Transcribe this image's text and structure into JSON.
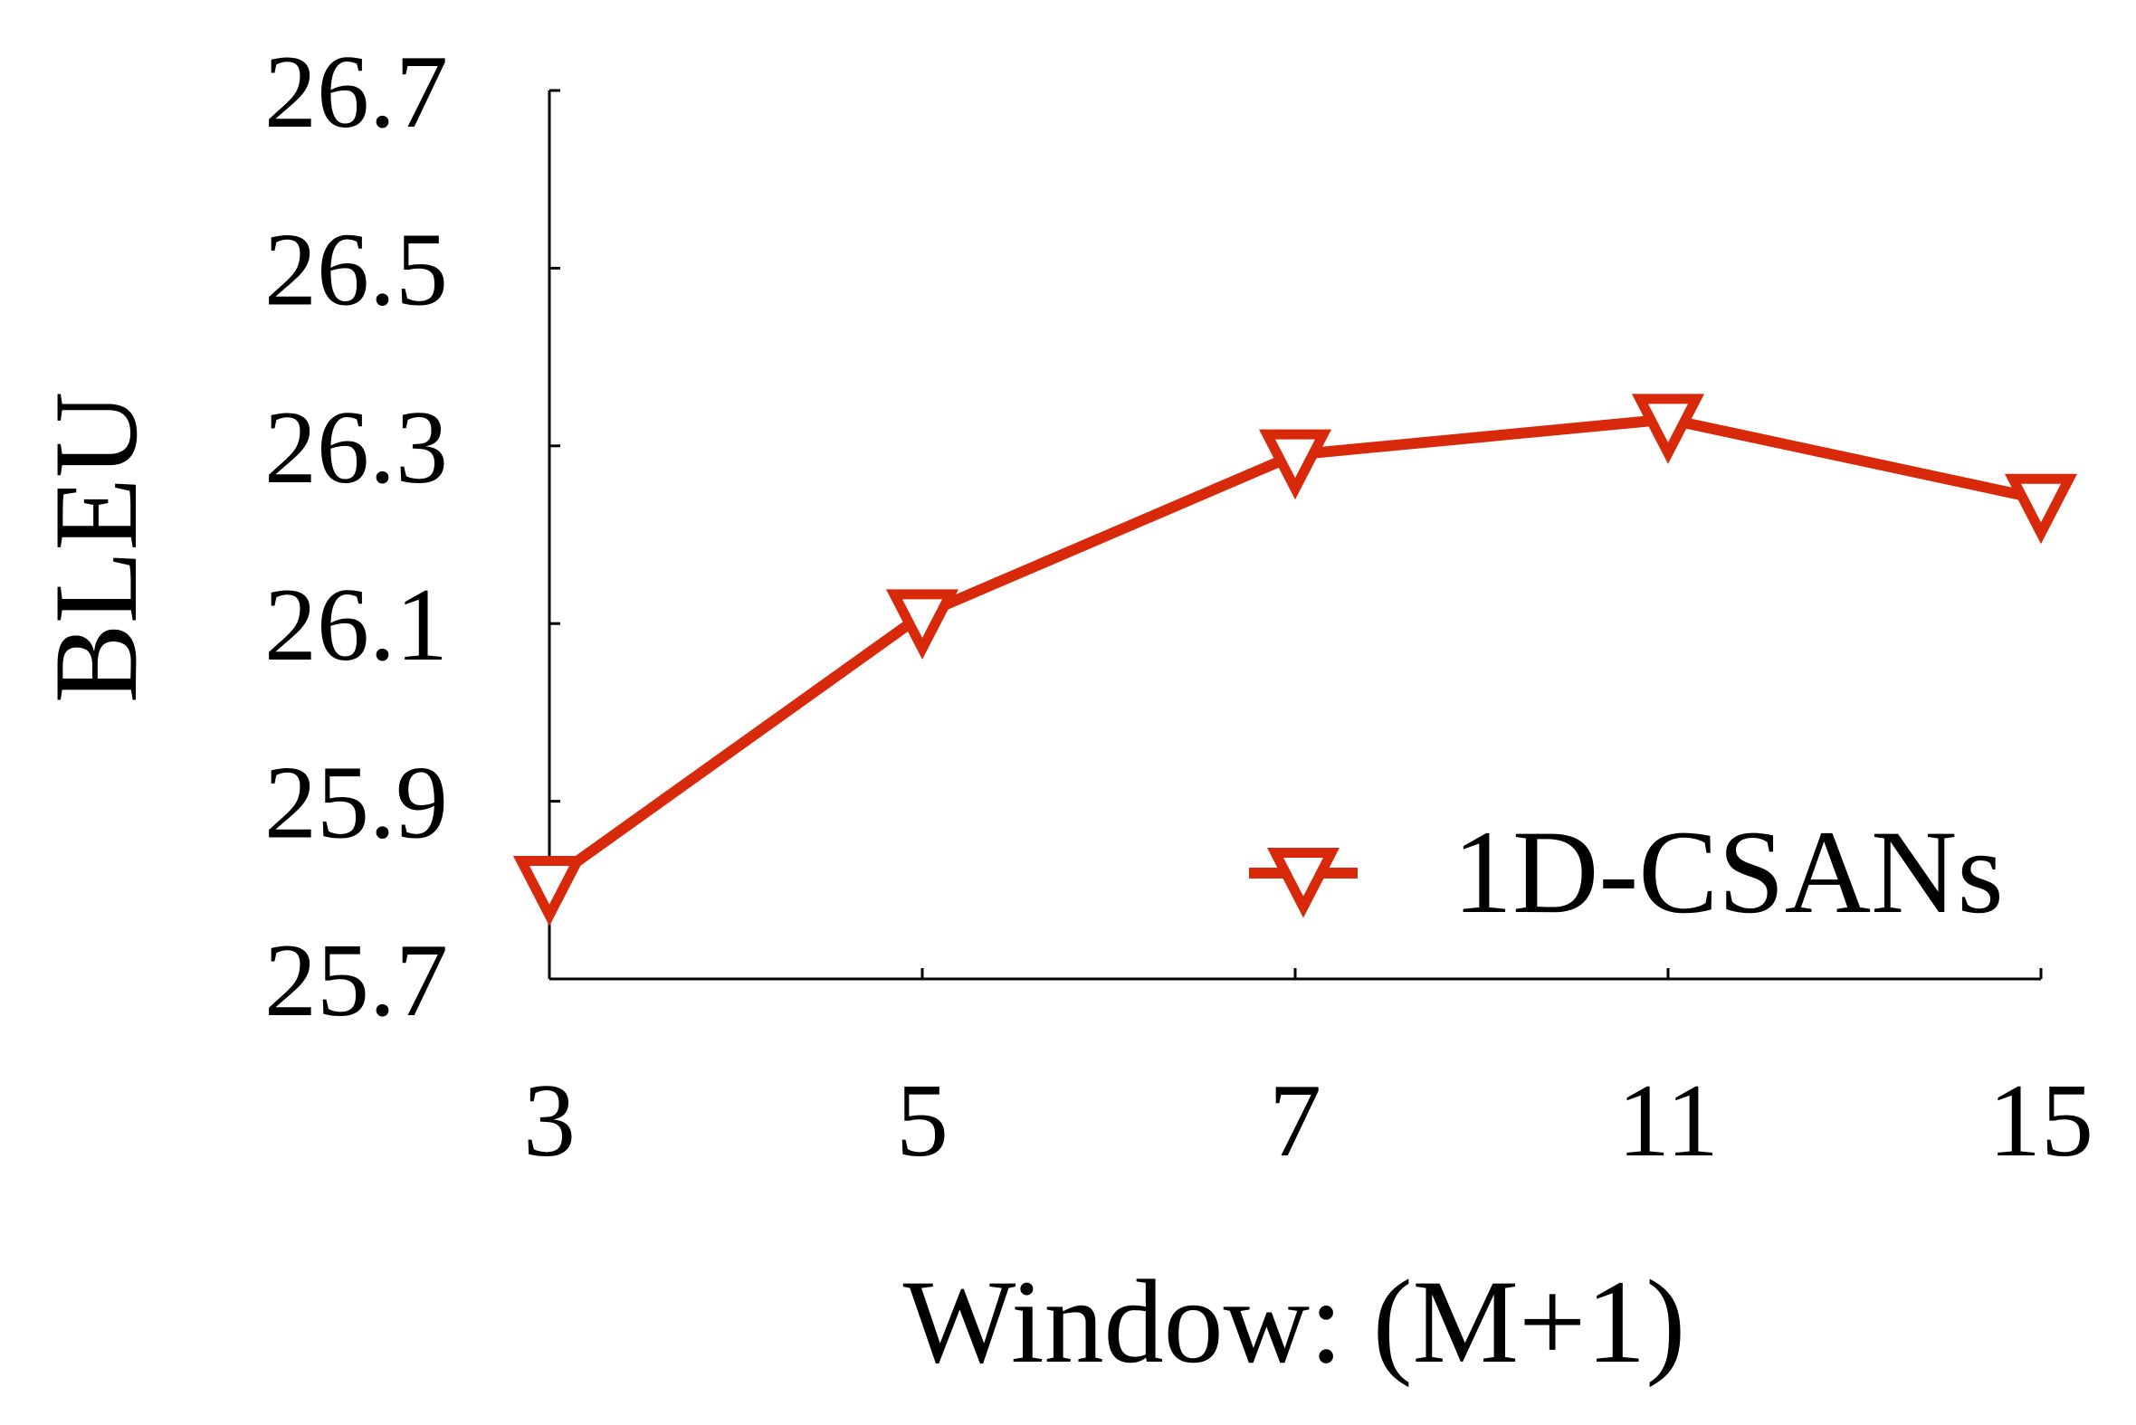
{
  "chart_data": {
    "type": "line",
    "title": "",
    "xlabel": "Window: (M+1)",
    "ylabel": "BLEU",
    "categories": [
      "3",
      "5",
      "7",
      "11",
      "15"
    ],
    "series": [
      {
        "name": "1D-CSANs",
        "values": [
          25.81,
          26.11,
          26.29,
          26.33,
          26.24
        ],
        "color": "#d9290b",
        "marker": "triangle-down-open"
      }
    ],
    "ylim": [
      25.7,
      26.7
    ],
    "yticks": [
      "25.7",
      "25.9",
      "26.1",
      "26.3",
      "26.5",
      "26.7"
    ],
    "grid": false,
    "legend": {
      "position": "bottom-right",
      "entries": [
        "1D-CSANs"
      ]
    }
  }
}
